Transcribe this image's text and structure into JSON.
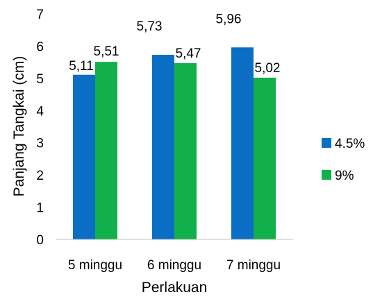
{
  "chart_data": {
    "type": "bar",
    "title": "",
    "xlabel": "Perlakuan",
    "ylabel": "Panjang Tangkai (cm)",
    "ylim": [
      0,
      7
    ],
    "yticks": [
      "0",
      "1",
      "2",
      "3",
      "4",
      "5",
      "6",
      "7"
    ],
    "categories": [
      "5 minggu",
      "6 minggu",
      "7 minggu"
    ],
    "series": [
      {
        "name": "4.5%",
        "color": "#0a6fc4",
        "values": [
          5.11,
          5.73,
          5.96
        ],
        "labels": [
          "5,11",
          "5,73",
          "5,96"
        ]
      },
      {
        "name": "9%",
        "color": "#12b04a",
        "values": [
          5.51,
          5.47,
          5.02
        ],
        "labels": [
          "5,51",
          "5,47",
          "5,02"
        ]
      }
    ],
    "grid": false,
    "legend": "right"
  }
}
